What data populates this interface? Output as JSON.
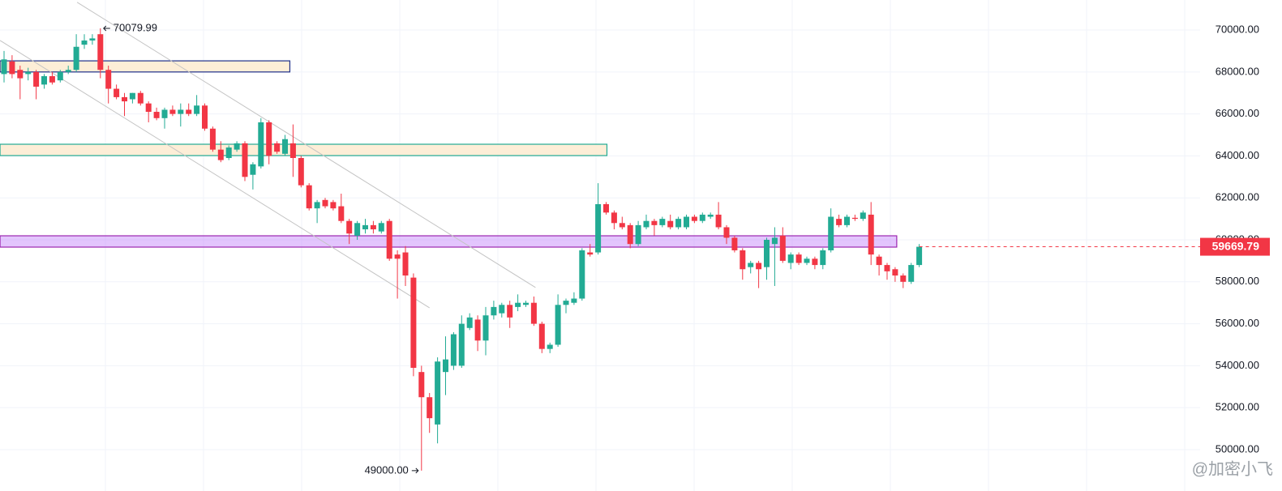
{
  "chart_data": {
    "type": "candlestick",
    "up_color": "#22ab94",
    "down_color": "#f23645",
    "ylim": [
      48030,
      71430
    ],
    "yticks": [
      {
        "value": 50000,
        "label": "50000.00"
      },
      {
        "value": 52000,
        "label": "52000.00"
      },
      {
        "value": 54000,
        "label": "54000.00"
      },
      {
        "value": 56000,
        "label": "56000.00"
      },
      {
        "value": 58000,
        "label": "58000.00"
      },
      {
        "value": 60000,
        "label": "60000.00"
      },
      {
        "value": 62000,
        "label": "62000.00"
      },
      {
        "value": 64000,
        "label": "64000.00"
      },
      {
        "value": 66000,
        "label": "66000.00"
      },
      {
        "value": 68000,
        "label": "68000.00"
      },
      {
        "value": 70000,
        "label": "70000.00"
      }
    ],
    "grid": true,
    "candles": [
      [
        67900,
        69000,
        67500,
        68600
      ],
      [
        68500,
        68800,
        67700,
        67900
      ],
      [
        68100,
        68300,
        66700,
        67700
      ],
      [
        67900,
        68200,
        67600,
        68000
      ],
      [
        68000,
        68100,
        66700,
        67300
      ],
      [
        67400,
        67900,
        67200,
        67800
      ],
      [
        67800,
        68000,
        67400,
        67500
      ],
      [
        67600,
        68100,
        67500,
        68000
      ],
      [
        68000,
        68300,
        67900,
        68100
      ],
      [
        68100,
        69800,
        68000,
        69200
      ],
      [
        69300,
        69800,
        69100,
        69500
      ],
      [
        69500,
        69800,
        69300,
        69600
      ],
      [
        69800,
        70079.99,
        67700,
        68100
      ],
      [
        68100,
        68300,
        66500,
        67200
      ],
      [
        67200,
        67400,
        66700,
        66800
      ],
      [
        66800,
        67000,
        65900,
        66600
      ],
      [
        66700,
        67000,
        66500,
        67000
      ],
      [
        67000,
        67100,
        66400,
        66500
      ],
      [
        66500,
        66600,
        65600,
        66100
      ],
      [
        66100,
        66300,
        65700,
        65800
      ],
      [
        65800,
        66300,
        65300,
        66200
      ],
      [
        66200,
        66400,
        65900,
        66000
      ],
      [
        66000,
        66500,
        65400,
        66200
      ],
      [
        66200,
        66500,
        65900,
        66000
      ],
      [
        66000,
        66900,
        65900,
        66400
      ],
      [
        66400,
        66500,
        65200,
        65300
      ],
      [
        65300,
        65400,
        64200,
        64300
      ],
      [
        64300,
        64700,
        63700,
        63800
      ],
      [
        63900,
        64500,
        63800,
        64400
      ],
      [
        64300,
        64700,
        64200,
        64600
      ],
      [
        64600,
        64700,
        62800,
        63000
      ],
      [
        63100,
        63700,
        62400,
        63600
      ],
      [
        63500,
        65800,
        63400,
        65600
      ],
      [
        65600,
        65700,
        63600,
        64000
      ],
      [
        64600,
        64700,
        64100,
        64200
      ],
      [
        64100,
        65000,
        64000,
        64800
      ],
      [
        64600,
        65500,
        63000,
        63900
      ],
      [
        63900,
        64000,
        62500,
        62600
      ],
      [
        62600,
        62700,
        61400,
        61500
      ],
      [
        61500,
        61900,
        60800,
        61800
      ],
      [
        61900,
        62000,
        61500,
        61600
      ],
      [
        61800,
        61900,
        61400,
        61500
      ],
      [
        61600,
        62200,
        60800,
        60900
      ],
      [
        60900,
        61000,
        59800,
        60300
      ],
      [
        60200,
        60900,
        60000,
        60800
      ],
      [
        60500,
        61000,
        60300,
        60700
      ],
      [
        60700,
        60900,
        60300,
        60500
      ],
      [
        60400,
        60900,
        60300,
        60800
      ],
      [
        60900,
        61000,
        59000,
        59100
      ],
      [
        59300,
        59500,
        57200,
        59100
      ],
      [
        59400,
        59700,
        57800,
        58300
      ],
      [
        58200,
        58400,
        53500,
        53900
      ],
      [
        53700,
        54000,
        49000,
        52500
      ],
      [
        52500,
        52700,
        50800,
        51500
      ],
      [
        51200,
        54400,
        50300,
        54200
      ],
      [
        53700,
        55400,
        52600,
        54300
      ],
      [
        54000,
        55600,
        53800,
        55500
      ],
      [
        54000,
        56400,
        53900,
        56000
      ],
      [
        55800,
        56500,
        55700,
        56300
      ],
      [
        56200,
        56400,
        54700,
        55200
      ],
      [
        55200,
        56800,
        54500,
        56400
      ],
      [
        56400,
        57100,
        56200,
        56800
      ],
      [
        56500,
        57000,
        56300,
        56900
      ],
      [
        56900,
        57100,
        55800,
        56300
      ],
      [
        56800,
        57400,
        56600,
        57000
      ],
      [
        56900,
        57100,
        56800,
        57000
      ],
      [
        57000,
        57300,
        55900,
        56000
      ],
      [
        56000,
        56100,
        54600,
        54800
      ],
      [
        54800,
        55100,
        54600,
        55000
      ],
      [
        55000,
        57400,
        54900,
        56900
      ],
      [
        56900,
        57200,
        56500,
        57100
      ],
      [
        57000,
        57500,
        56900,
        57200
      ],
      [
        57200,
        59600,
        57100,
        59500
      ],
      [
        59400,
        59800,
        59200,
        59300
      ],
      [
        59400,
        62700,
        59300,
        61700
      ],
      [
        61700,
        61800,
        61200,
        61300
      ],
      [
        61300,
        61400,
        60500,
        60800
      ],
      [
        60800,
        61100,
        60500,
        60600
      ],
      [
        60700,
        60800,
        59600,
        59800
      ],
      [
        59800,
        60900,
        59700,
        60700
      ],
      [
        60600,
        61200,
        60500,
        60900
      ],
      [
        60900,
        61000,
        60200,
        60700
      ],
      [
        60700,
        61100,
        60600,
        61000
      ],
      [
        60900,
        61200,
        60500,
        60600
      ],
      [
        60600,
        61100,
        60500,
        61000
      ],
      [
        60600,
        61200,
        60500,
        61100
      ],
      [
        61100,
        61200,
        60800,
        60900
      ],
      [
        60900,
        61300,
        60800,
        61200
      ],
      [
        61100,
        61300,
        61000,
        61200
      ],
      [
        61200,
        61800,
        60500,
        60600
      ],
      [
        60600,
        60700,
        59800,
        60100
      ],
      [
        60100,
        60200,
        59400,
        59500
      ],
      [
        59500,
        59600,
        58100,
        58600
      ],
      [
        58700,
        59000,
        58400,
        58900
      ],
      [
        58900,
        59000,
        57700,
        58600
      ],
      [
        58700,
        60100,
        58100,
        60000
      ],
      [
        59800,
        60600,
        57800,
        60100
      ],
      [
        60200,
        60600,
        58900,
        59000
      ],
      [
        58900,
        59400,
        58600,
        59300
      ],
      [
        59300,
        59400,
        58800,
        58900
      ],
      [
        58900,
        59200,
        58800,
        59100
      ],
      [
        59100,
        59200,
        58600,
        58800
      ],
      [
        58800,
        59600,
        58600,
        59500
      ],
      [
        59500,
        61500,
        59400,
        61100
      ],
      [
        61000,
        61200,
        60600,
        60700
      ],
      [
        60700,
        61200,
        60600,
        61100
      ],
      [
        61050,
        61200,
        60900,
        61000
      ],
      [
        61000,
        61400,
        60900,
        61300
      ],
      [
        61200,
        61800,
        58800,
        59300
      ],
      [
        59200,
        59300,
        58300,
        58800
      ],
      [
        58800,
        58900,
        58100,
        58500
      ],
      [
        58600,
        58700,
        58000,
        58300
      ],
      [
        58300,
        58400,
        57700,
        58000
      ],
      [
        58000,
        58900,
        57900,
        58800
      ],
      [
        58800,
        59800,
        58700,
        59670
      ]
    ],
    "zones": [
      {
        "start": -0.5,
        "end": 35.6,
        "low": 68000,
        "high": 68530,
        "fill": "#fdebd0",
        "border": "#1e2f8a"
      },
      {
        "start": -0.5,
        "end": 75.1,
        "low": 64015,
        "high": 64556,
        "fill": "#fdebd0",
        "border": "#22ab94"
      },
      {
        "start": -0.5,
        "end": 111.2,
        "low": 59653,
        "high": 60193,
        "fill": "rgba(196,130,250,0.55)",
        "border": "#9c27b0"
      }
    ],
    "lines": [
      [
        [
          9.1,
          71320
        ],
        [
          66.2,
          57730
        ]
      ],
      [
        [
          -0.5,
          69500
        ],
        [
          53.0,
          56760
        ]
      ]
    ],
    "annotations": [
      {
        "index": 12,
        "value": 70079.99,
        "side": "right"
      },
      {
        "index": 52,
        "value": 49000,
        "label": "49000.00",
        "side": "left"
      }
    ],
    "last_price": {
      "index": 114,
      "value": 59669.79,
      "color": "#f23645"
    },
    "watermark": "@加密小飞"
  }
}
